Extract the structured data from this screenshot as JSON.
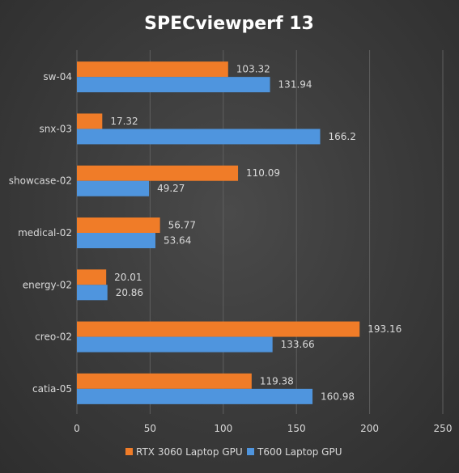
{
  "chart_data": {
    "type": "bar",
    "orientation": "horizontal",
    "title": "SPECviewperf 13",
    "categories": [
      "sw-04",
      "snx-03",
      "showcase-02",
      "medical-02",
      "energy-02",
      "creo-02",
      "catia-05"
    ],
    "series": [
      {
        "name": "RTX 3060 Laptop GPU",
        "color": "#f07c28",
        "values": [
          103.32,
          17.32,
          110.09,
          56.77,
          20.01,
          193.16,
          119.38
        ]
      },
      {
        "name": "T600 Laptop GPU",
        "color": "#4f95de",
        "values": [
          131.94,
          166.2,
          49.27,
          53.64,
          20.86,
          133.66,
          160.98
        ]
      }
    ],
    "value_labels": [
      [
        "103.32",
        "17.32",
        "110.09",
        "56.77",
        "20.01",
        "193.16",
        "119.38"
      ],
      [
        "131.94",
        "166.2",
        "49.27",
        "53.64",
        "20.86",
        "133.66",
        "160.98"
      ]
    ],
    "xlim": [
      0,
      250
    ],
    "xticks": [
      "0",
      "50",
      "100",
      "150",
      "200",
      "250"
    ],
    "xtick_values": [
      0,
      50,
      100,
      150,
      200,
      250
    ],
    "grid": true,
    "legend_position": "bottom"
  }
}
